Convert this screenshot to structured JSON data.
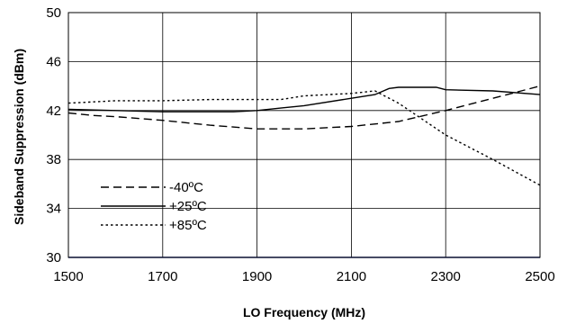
{
  "chart_data": {
    "type": "line",
    "title": "",
    "xlabel": "LO Frequency (MHz)",
    "ylabel": "Sideband Suppression (dBm)",
    "xlim": [
      1500,
      2500
    ],
    "ylim": [
      30,
      50
    ],
    "xticks": [
      1500,
      1700,
      1900,
      2100,
      2300,
      2500
    ],
    "yticks": [
      30,
      34,
      38,
      42,
      46,
      50
    ],
    "grid": true,
    "legend_position": "bottom-left",
    "series": [
      {
        "name": "-40ºC",
        "style": "dashed",
        "color": "#000000",
        "x": [
          1500,
          1550,
          1600,
          1700,
          1800,
          1900,
          2000,
          2100,
          2200,
          2300,
          2400,
          2500
        ],
        "y": [
          41.8,
          41.6,
          41.5,
          41.2,
          40.8,
          40.5,
          40.5,
          40.7,
          41.1,
          42.0,
          43.0,
          44.0
        ]
      },
      {
        "name": "+25ºC",
        "style": "solid",
        "color": "#000000",
        "x": [
          1500,
          1600,
          1700,
          1800,
          1850,
          1900,
          1950,
          2000,
          2100,
          2150,
          2180,
          2200,
          2280,
          2300,
          2400,
          2500
        ],
        "y": [
          42.1,
          42.0,
          41.9,
          41.9,
          41.9,
          42.0,
          42.2,
          42.4,
          43.0,
          43.3,
          43.8,
          43.9,
          43.9,
          43.7,
          43.6,
          43.3
        ]
      },
      {
        "name": "+85ºC",
        "style": "dotted",
        "color": "#000000",
        "x": [
          1500,
          1550,
          1600,
          1700,
          1800,
          1900,
          1950,
          2000,
          2100,
          2150,
          2200,
          2300,
          2400,
          2500
        ],
        "y": [
          42.6,
          42.7,
          42.8,
          42.8,
          42.9,
          42.9,
          42.9,
          43.2,
          43.4,
          43.6,
          42.6,
          40.0,
          38.0,
          35.9
        ]
      }
    ]
  }
}
